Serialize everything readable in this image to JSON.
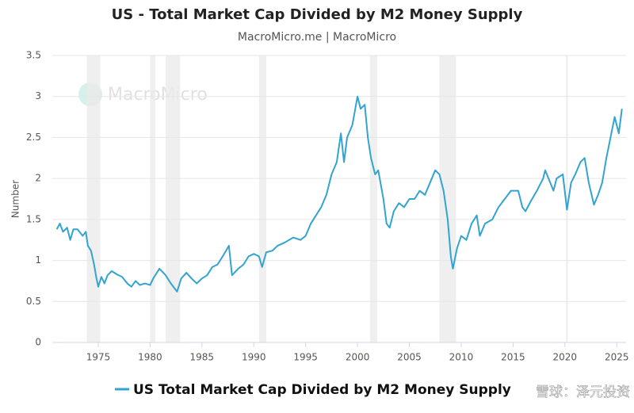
{
  "chart_data": {
    "type": "line",
    "title": "US - Total Market Cap Divided by M2 Money Supply",
    "subtitle": "MacroMicro.me | MacroMicro",
    "y_label": "Number",
    "watermark": "MacroMicro",
    "overlay_text": "雪球：泽元投资",
    "x": [
      1971.0,
      1971.3,
      1971.6,
      1972.0,
      1972.3,
      1972.6,
      1973.0,
      1973.5,
      1973.8,
      1974.0,
      1974.3,
      1974.6,
      1974.8,
      1975.0,
      1975.3,
      1975.6,
      1975.9,
      1976.3,
      1976.8,
      1977.3,
      1977.8,
      1978.2,
      1978.6,
      1979.0,
      1979.5,
      1980.0,
      1980.3,
      1980.9,
      1981.5,
      1982.0,
      1982.6,
      1983.0,
      1983.5,
      1984.0,
      1984.5,
      1985.0,
      1985.5,
      1986.0,
      1986.5,
      1987.0,
      1987.6,
      1987.9,
      1988.5,
      1989.0,
      1989.5,
      1990.0,
      1990.5,
      1990.8,
      1991.2,
      1991.8,
      1992.3,
      1993.0,
      1993.8,
      1994.5,
      1995.0,
      1995.5,
      1996.0,
      1996.5,
      1997.0,
      1997.5,
      1998.0,
      1998.4,
      1998.7,
      1999.0,
      1999.5,
      2000.0,
      2000.3,
      2000.7,
      2001.0,
      2001.3,
      2001.7,
      2002.0,
      2002.5,
      2002.8,
      2003.1,
      2003.5,
      2004.0,
      2004.5,
      2005.0,
      2005.5,
      2006.0,
      2006.5,
      2007.0,
      2007.5,
      2007.9,
      2008.3,
      2008.7,
      2009.0,
      2009.2,
      2009.6,
      2010.0,
      2010.5,
      2011.0,
      2011.5,
      2011.8,
      2012.3,
      2013.0,
      2013.6,
      2014.2,
      2014.8,
      2015.5,
      2015.9,
      2016.2,
      2016.7,
      2017.3,
      2017.9,
      2018.1,
      2018.9,
      2019.2,
      2019.8,
      2020.2,
      2020.6,
      2021.0,
      2021.5,
      2021.9,
      2022.3,
      2022.8,
      2023.2,
      2023.6,
      2024.0,
      2024.4,
      2024.8,
      2025.2,
      2025.5
    ],
    "series": [
      {
        "name": "US Total Market Cap Divided by M2 Money Supply",
        "color": "#33a3d0",
        "values": [
          1.38,
          1.45,
          1.35,
          1.4,
          1.25,
          1.38,
          1.38,
          1.3,
          1.35,
          1.18,
          1.12,
          0.95,
          0.8,
          0.68,
          0.8,
          0.72,
          0.82,
          0.87,
          0.83,
          0.8,
          0.72,
          0.68,
          0.75,
          0.7,
          0.72,
          0.7,
          0.78,
          0.9,
          0.82,
          0.72,
          0.62,
          0.78,
          0.85,
          0.78,
          0.72,
          0.78,
          0.82,
          0.92,
          0.95,
          1.05,
          1.18,
          0.82,
          0.9,
          0.95,
          1.05,
          1.08,
          1.05,
          0.92,
          1.1,
          1.12,
          1.18,
          1.22,
          1.28,
          1.25,
          1.3,
          1.45,
          1.55,
          1.65,
          1.8,
          2.05,
          2.2,
          2.55,
          2.2,
          2.5,
          2.65,
          3.0,
          2.85,
          2.9,
          2.5,
          2.25,
          2.05,
          2.1,
          1.75,
          1.45,
          1.4,
          1.6,
          1.7,
          1.65,
          1.75,
          1.75,
          1.85,
          1.8,
          1.95,
          2.1,
          2.05,
          1.85,
          1.5,
          1.05,
          0.9,
          1.15,
          1.3,
          1.25,
          1.45,
          1.55,
          1.3,
          1.45,
          1.5,
          1.65,
          1.75,
          1.85,
          1.85,
          1.65,
          1.6,
          1.72,
          1.85,
          2.0,
          2.1,
          1.85,
          2.0,
          2.05,
          1.62,
          1.95,
          2.05,
          2.2,
          2.25,
          1.95,
          1.68,
          1.8,
          1.95,
          2.25,
          2.5,
          2.75,
          2.55,
          2.85
        ]
      }
    ],
    "recessions": [
      [
        1973.9,
        1975.2
      ],
      [
        1980.0,
        1980.5
      ],
      [
        1981.5,
        1982.9
      ],
      [
        1990.5,
        1991.2
      ],
      [
        2001.2,
        2001.9
      ],
      [
        2007.9,
        2009.5
      ],
      [
        2020.1,
        2020.3
      ]
    ],
    "xlim": [
      1970.57,
      2025.9
    ],
    "xticks": [
      1975,
      1980,
      1985,
      1990,
      1995,
      2000,
      2005,
      2010,
      2015,
      2020,
      2025
    ],
    "ylim": [
      0,
      3.5
    ],
    "yticks": [
      0,
      0.5,
      1,
      1.5,
      2,
      2.5,
      3,
      3.5
    ],
    "grid": true
  }
}
